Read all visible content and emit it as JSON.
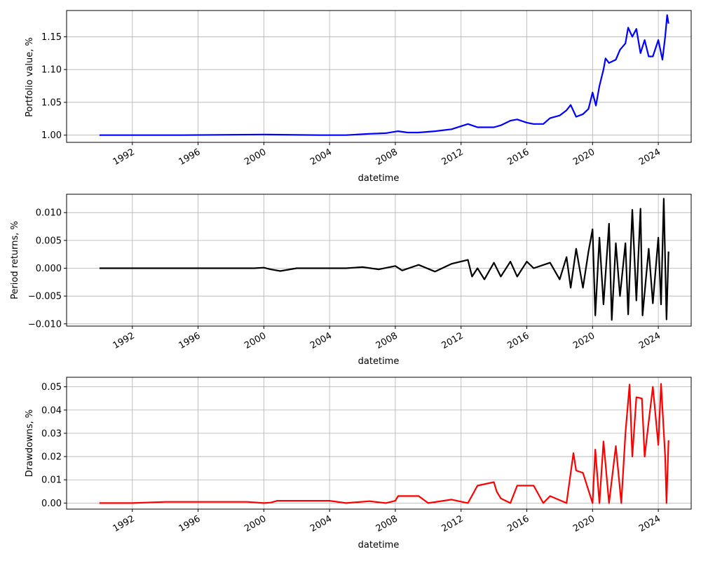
{
  "chart_data": [
    {
      "type": "line",
      "xlabel": "datetime",
      "ylabel": "Portfolio value, %",
      "xlim": [
        "1988-01-01",
        "2026-01-01"
      ],
      "ylim": [
        0.989,
        1.19
      ],
      "x_ticks": [
        "1992",
        "1996",
        "2000",
        "2004",
        "2008",
        "2012",
        "2016",
        "2020",
        "2024"
      ],
      "y_ticks": [
        "1.00",
        "1.05",
        "1.10",
        "1.15"
      ],
      "y_tick_values": [
        1.0,
        1.05,
        1.1,
        1.15
      ],
      "grid": true,
      "color": "#0000ff",
      "series": [
        {
          "values": [
            [
              "1990-01-01",
              1.0
            ],
            [
              "1995-01-01",
              1.0
            ],
            [
              "2000-01-01",
              1.001
            ],
            [
              "2003-06-01",
              1.0
            ],
            [
              "2005-01-01",
              1.0
            ],
            [
              "2006-06-01",
              1.002
            ],
            [
              "2007-06-01",
              1.003
            ],
            [
              "2008-03-01",
              1.006
            ],
            [
              "2008-10-01",
              1.004
            ],
            [
              "2009-06-01",
              1.004
            ],
            [
              "2010-06-01",
              1.006
            ],
            [
              "2011-06-01",
              1.009
            ],
            [
              "2012-06-01",
              1.017
            ],
            [
              "2013-01-01",
              1.012
            ],
            [
              "2014-01-01",
              1.012
            ],
            [
              "2014-06-01",
              1.015
            ],
            [
              "2015-01-01",
              1.022
            ],
            [
              "2015-06-01",
              1.024
            ],
            [
              "2016-01-01",
              1.019
            ],
            [
              "2016-06-01",
              1.017
            ],
            [
              "2017-01-01",
              1.017
            ],
            [
              "2017-06-01",
              1.026
            ],
            [
              "2018-01-01",
              1.03
            ],
            [
              "2018-06-01",
              1.038
            ],
            [
              "2018-09-01",
              1.046
            ],
            [
              "2019-01-01",
              1.028
            ],
            [
              "2019-06-01",
              1.032
            ],
            [
              "2019-10-01",
              1.04
            ],
            [
              "2020-01-01",
              1.065
            ],
            [
              "2020-03-15",
              1.045
            ],
            [
              "2020-06-01",
              1.075
            ],
            [
              "2020-09-01",
              1.1
            ],
            [
              "2020-10-15",
              1.117
            ],
            [
              "2021-01-01",
              1.11
            ],
            [
              "2021-06-01",
              1.115
            ],
            [
              "2021-09-01",
              1.13
            ],
            [
              "2022-01-01",
              1.14
            ],
            [
              "2022-03-01",
              1.164
            ],
            [
              "2022-06-01",
              1.15
            ],
            [
              "2022-09-01",
              1.162
            ],
            [
              "2022-12-01",
              1.125
            ],
            [
              "2023-03-01",
              1.145
            ],
            [
              "2023-06-01",
              1.12
            ],
            [
              "2023-09-01",
              1.12
            ],
            [
              "2024-01-01",
              1.145
            ],
            [
              "2024-04-01",
              1.115
            ],
            [
              "2024-06-01",
              1.15
            ],
            [
              "2024-07-15",
              1.183
            ],
            [
              "2024-08-15",
              1.17
            ]
          ]
        }
      ]
    },
    {
      "type": "line",
      "xlabel": "datetime",
      "ylabel": "Period returns, %",
      "xlim": [
        "1988-01-01",
        "2026-01-01"
      ],
      "ylim": [
        -0.0104,
        0.0133
      ],
      "x_ticks": [
        "1992",
        "1996",
        "2000",
        "2004",
        "2008",
        "2012",
        "2016",
        "2020",
        "2024"
      ],
      "y_ticks": [
        "0.010",
        "0.005",
        "0.000",
        "−0.005",
        "−0.010"
      ],
      "y_tick_values": [
        0.01,
        0.005,
        0.0,
        -0.005,
        -0.01
      ],
      "grid": true,
      "color": "#000000",
      "series": [
        {
          "values": [
            [
              "1990-01-01",
              0.0
            ],
            [
              "1999-06-01",
              0.0
            ],
            [
              "2000-01-01",
              0.0001
            ],
            [
              "2000-06-01",
              -0.0002
            ],
            [
              "2001-01-01",
              -0.0005
            ],
            [
              "2002-01-01",
              0.0
            ],
            [
              "2005-01-01",
              0.0
            ],
            [
              "2006-01-01",
              0.0002
            ],
            [
              "2007-01-01",
              -0.0002
            ],
            [
              "2008-01-01",
              0.0004
            ],
            [
              "2008-06-01",
              -0.0004
            ],
            [
              "2009-06-01",
              0.0006
            ],
            [
              "2010-06-01",
              -0.0006
            ],
            [
              "2011-06-01",
              0.0008
            ],
            [
              "2012-06-01",
              0.0015
            ],
            [
              "2012-09-01",
              -0.0015
            ],
            [
              "2013-01-01",
              0.0
            ],
            [
              "2013-06-01",
              -0.002
            ],
            [
              "2014-01-01",
              0.001
            ],
            [
              "2014-06-01",
              -0.0015
            ],
            [
              "2015-01-01",
              0.0012
            ],
            [
              "2015-06-01",
              -0.0015
            ],
            [
              "2016-01-01",
              0.0012
            ],
            [
              "2016-06-01",
              0.0
            ],
            [
              "2017-06-01",
              0.001
            ],
            [
              "2018-01-01",
              -0.002
            ],
            [
              "2018-06-01",
              0.002
            ],
            [
              "2018-09-01",
              -0.0035
            ],
            [
              "2019-01-01",
              0.0035
            ],
            [
              "2019-06-01",
              -0.0035
            ],
            [
              "2019-10-01",
              0.003
            ],
            [
              "2020-01-01",
              0.007
            ],
            [
              "2020-03-01",
              -0.0085
            ],
            [
              "2020-06-01",
              0.0055
            ],
            [
              "2020-09-01",
              -0.0065
            ],
            [
              "2021-01-01",
              0.008
            ],
            [
              "2021-03-01",
              -0.0093
            ],
            [
              "2021-06-01",
              0.0045
            ],
            [
              "2021-09-01",
              -0.005
            ],
            [
              "2022-01-01",
              0.0045
            ],
            [
              "2022-03-01",
              -0.0083
            ],
            [
              "2022-06-01",
              0.0105
            ],
            [
              "2022-09-01",
              -0.0058
            ],
            [
              "2022-12-01",
              0.0107
            ],
            [
              "2023-01-15",
              -0.0085
            ],
            [
              "2023-06-01",
              0.0035
            ],
            [
              "2023-09-01",
              -0.0063
            ],
            [
              "2024-01-01",
              0.0055
            ],
            [
              "2024-03-01",
              -0.0065
            ],
            [
              "2024-05-01",
              0.0125
            ],
            [
              "2024-07-01",
              -0.0092
            ],
            [
              "2024-08-15",
              0.003
            ]
          ]
        }
      ]
    },
    {
      "type": "line",
      "xlabel": "datetime",
      "ylabel": "Drawdowns, %",
      "xlim": [
        "1988-01-01",
        "2026-01-01"
      ],
      "ylim": [
        -0.0026,
        0.0541
      ],
      "x_ticks": [
        "1992",
        "1996",
        "2000",
        "2004",
        "2008",
        "2012",
        "2016",
        "2020",
        "2024"
      ],
      "y_ticks": [
        "0.05",
        "0.04",
        "0.03",
        "0.02",
        "0.01",
        "0.00"
      ],
      "y_tick_values": [
        0.05,
        0.04,
        0.03,
        0.02,
        0.01,
        0.0
      ],
      "grid": true,
      "color": "#ff0000",
      "series": [
        {
          "values": [
            [
              "1990-01-01",
              0.0
            ],
            [
              "1992-01-01",
              0.0
            ],
            [
              "1994-01-01",
              0.0005
            ],
            [
              "1999-01-01",
              0.0005
            ],
            [
              "2000-01-01",
              0.0
            ],
            [
              "2000-06-01",
              0.0002
            ],
            [
              "2000-11-01",
              0.001
            ],
            [
              "2004-01-01",
              0.001
            ],
            [
              "2005-01-01",
              0.0
            ],
            [
              "2006-06-01",
              0.0008
            ],
            [
              "2007-06-01",
              0.0
            ],
            [
              "2008-01-01",
              0.001
            ],
            [
              "2008-03-01",
              0.003
            ],
            [
              "2009-06-01",
              0.003
            ],
            [
              "2010-01-01",
              0.0
            ],
            [
              "2011-06-01",
              0.0015
            ],
            [
              "2012-06-01",
              0.0
            ],
            [
              "2013-01-01",
              0.0075
            ],
            [
              "2014-01-01",
              0.009
            ],
            [
              "2014-03-01",
              0.005
            ],
            [
              "2014-06-01",
              0.002
            ],
            [
              "2015-01-01",
              0.0
            ],
            [
              "2015-06-01",
              0.0075
            ],
            [
              "2016-06-01",
              0.0075
            ],
            [
              "2017-01-01",
              0.0
            ],
            [
              "2017-06-01",
              0.003
            ],
            [
              "2018-06-01",
              0.0
            ],
            [
              "2018-11-01",
              0.0215
            ],
            [
              "2019-01-01",
              0.014
            ],
            [
              "2019-06-01",
              0.013
            ],
            [
              "2020-01-01",
              0.0
            ],
            [
              "2020-03-01",
              0.023
            ],
            [
              "2020-06-01",
              0.0
            ],
            [
              "2020-09-01",
              0.0265
            ],
            [
              "2021-01-01",
              0.0
            ],
            [
              "2021-06-01",
              0.0245
            ],
            [
              "2021-10-01",
              0.0
            ],
            [
              "2022-01-01",
              0.03
            ],
            [
              "2022-04-01",
              0.051
            ],
            [
              "2022-06-01",
              0.02
            ],
            [
              "2022-09-01",
              0.0455
            ],
            [
              "2023-01-01",
              0.045
            ],
            [
              "2023-03-01",
              0.02
            ],
            [
              "2023-06-01",
              0.035
            ],
            [
              "2023-09-01",
              0.05
            ],
            [
              "2024-01-01",
              0.025
            ],
            [
              "2024-03-01",
              0.0513
            ],
            [
              "2024-06-01",
              0.02
            ],
            [
              "2024-07-01",
              0.0
            ],
            [
              "2024-08-15",
              0.027
            ]
          ]
        }
      ]
    }
  ]
}
